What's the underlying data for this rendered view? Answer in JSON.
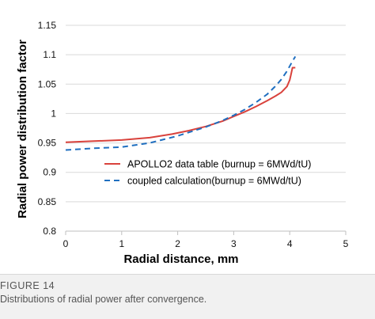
{
  "figure": {
    "label": "FIGURE 14",
    "caption": "Distributions of radial power after convergence."
  },
  "chart_data": {
    "type": "line",
    "title": "",
    "xlabel": "Radial distance, mm",
    "ylabel": "Radial power distribution factor",
    "xlim": [
      0,
      5
    ],
    "ylim": [
      0.8,
      1.15
    ],
    "xticks": [
      "0",
      "1",
      "2",
      "3",
      "4",
      "5"
    ],
    "yticks": [
      "0.8",
      "0.85",
      "0.9",
      "0.95",
      "1",
      "1.05",
      "1.1",
      "1.15"
    ],
    "grid": "horizontal",
    "legend_position": "inside-lower-right",
    "series": [
      {
        "name": "APOLLO2 data table (burnup = 6MWd/tU)",
        "style": "solid",
        "color": "#d9423c",
        "x": [
          0,
          0.5,
          1.0,
          1.5,
          1.9,
          2.2,
          2.5,
          2.8,
          3.0,
          3.2,
          3.4,
          3.6,
          3.75,
          3.85,
          3.95,
          4.0,
          4.02,
          4.05,
          4.1
        ],
        "y": [
          0.951,
          0.953,
          0.955,
          0.959,
          0.965,
          0.971,
          0.978,
          0.987,
          0.995,
          1.003,
          1.012,
          1.022,
          1.03,
          1.036,
          1.046,
          1.057,
          1.065,
          1.078,
          1.078
        ]
      },
      {
        "name": "coupled calculation(burnup = 6MWd/tU)",
        "style": "dashed",
        "color": "#1f6fc0",
        "x": [
          0,
          0.5,
          1.0,
          1.5,
          2.0,
          2.5,
          2.8,
          3.0,
          3.2,
          3.4,
          3.6,
          3.75,
          3.85,
          3.95,
          4.05,
          4.1
        ],
        "y": [
          0.938,
          0.941,
          0.943,
          0.95,
          0.962,
          0.977,
          0.988,
          0.997,
          1.007,
          1.019,
          1.033,
          1.047,
          1.058,
          1.072,
          1.089,
          1.097
        ]
      }
    ]
  }
}
